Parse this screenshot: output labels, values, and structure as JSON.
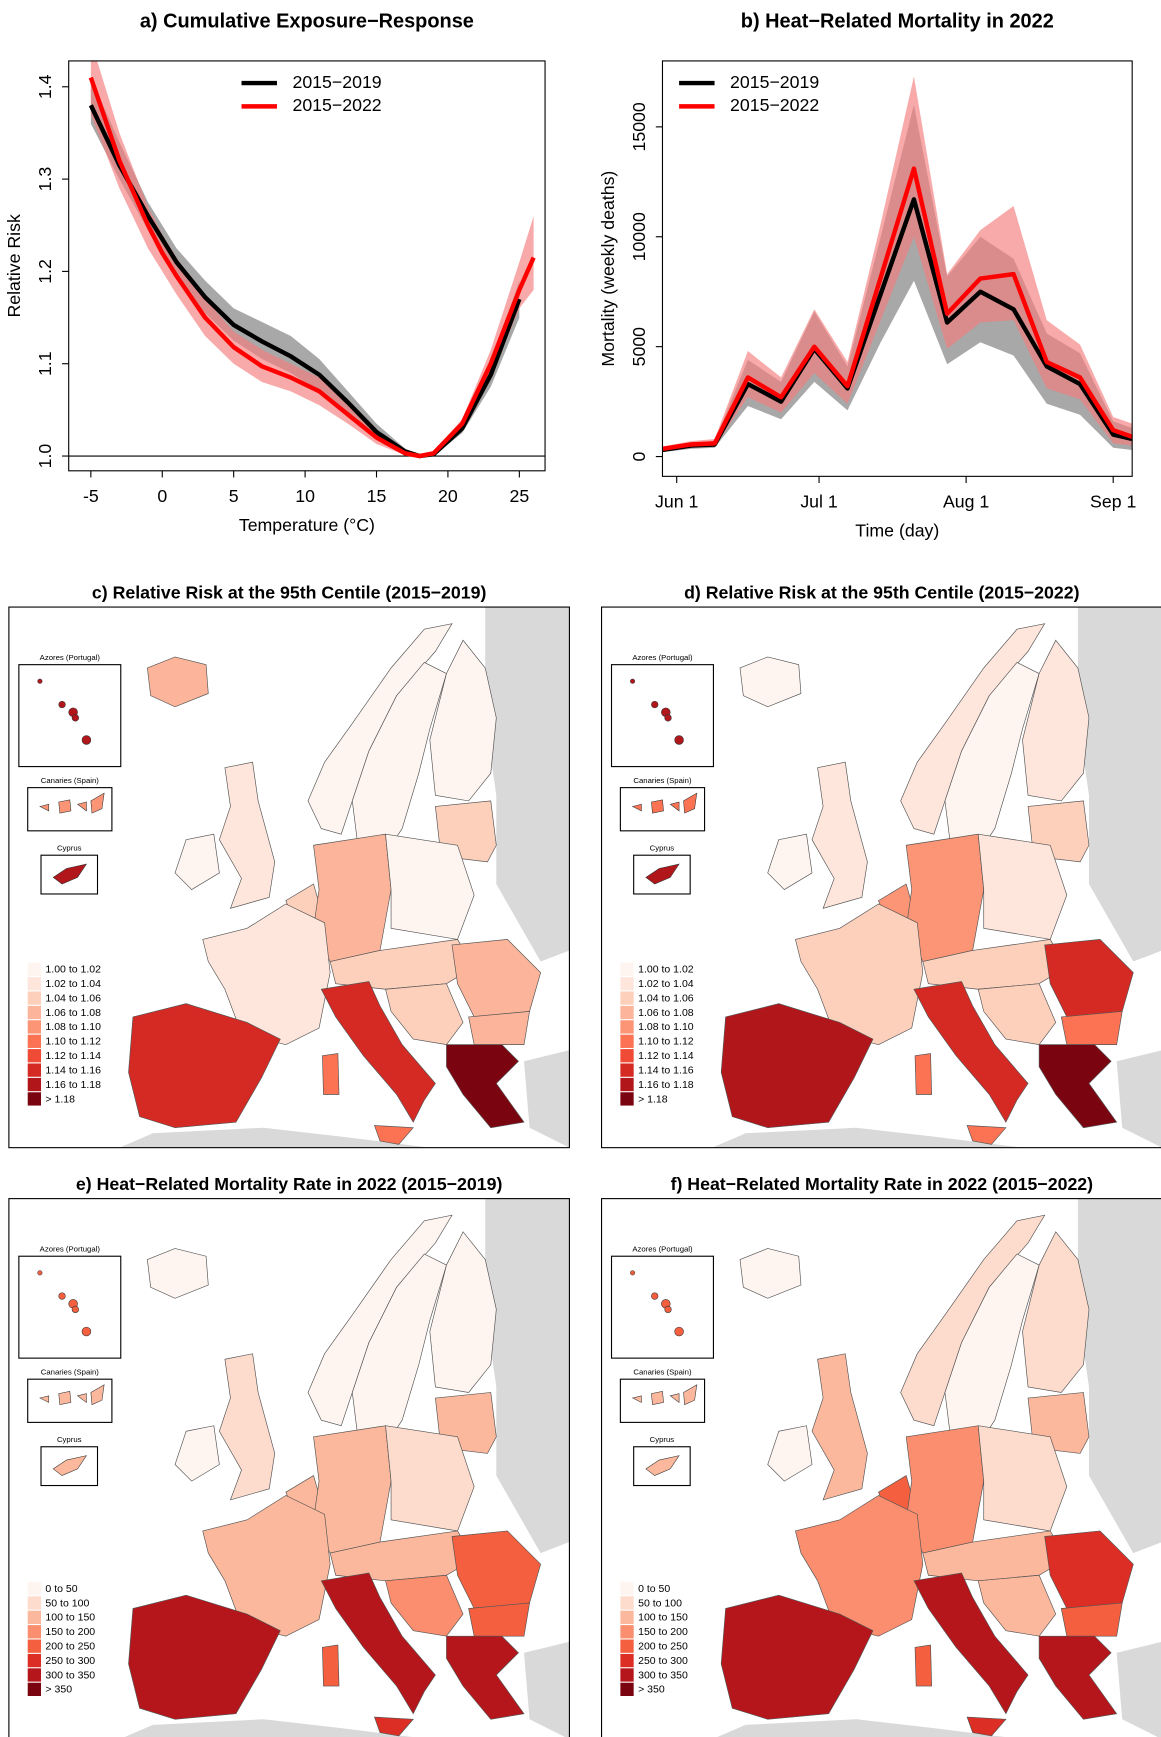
{
  "chart_data": [
    {
      "type": "line",
      "title": "a) Cumulative Exposure−Response",
      "xlabel": "Temperature (°C)",
      "ylabel": "Relative Risk",
      "xlim": [
        -6.55,
        26.8
      ],
      "ylim": [
        0.984,
        1.428
      ],
      "xticks": [
        -5,
        0,
        5,
        10,
        15,
        20,
        25
      ],
      "yticks": [
        {
          "value": 1,
          "label": "1.0"
        },
        1.1,
        1.2,
        1.3,
        1.4
      ],
      "hline": 1,
      "legend": "top",
      "x": [
        -5,
        -3,
        -1,
        0,
        1,
        3,
        5,
        7,
        9,
        11,
        13,
        15,
        17,
        18,
        19,
        21,
        23,
        25,
        26
      ],
      "series": [
        {
          "name": "2015−2019",
          "color": "#000000",
          "band_color": "#7a7a7a",
          "values": [
            1.38,
            1.315,
            1.26,
            1.235,
            1.21,
            1.172,
            1.142,
            1.124,
            1.108,
            1.088,
            1.058,
            1.026,
            1.005,
            1.0,
            1.002,
            1.03,
            1.088,
            1.17,
            null
          ],
          "lower": [
            1.36,
            1.3,
            1.245,
            1.22,
            1.195,
            1.155,
            1.125,
            1.105,
            1.09,
            1.07,
            1.045,
            1.02,
            1.003,
            1.0,
            1.0,
            1.025,
            1.075,
            1.15,
            null
          ],
          "upper": [
            1.41,
            1.34,
            1.275,
            1.25,
            1.225,
            1.19,
            1.16,
            1.145,
            1.13,
            1.105,
            1.07,
            1.035,
            1.008,
            1.0,
            1.004,
            1.035,
            1.1,
            1.19,
            null
          ]
        },
        {
          "name": "2015−2022",
          "color": "#ff0000",
          "band_color": "#f47c7c",
          "values": [
            1.41,
            1.32,
            1.25,
            1.22,
            1.195,
            1.15,
            1.118,
            1.097,
            1.085,
            1.07,
            1.045,
            1.02,
            1.003,
            1.0,
            1.003,
            1.035,
            1.1,
            1.18,
            1.215
          ],
          "lower": [
            1.37,
            1.29,
            1.225,
            1.2,
            1.175,
            1.13,
            1.1,
            1.08,
            1.07,
            1.055,
            1.035,
            1.013,
            1.001,
            1.0,
            1.001,
            1.03,
            1.085,
            1.16,
            1.18
          ],
          "upper": [
            1.45,
            1.35,
            1.27,
            1.24,
            1.215,
            1.17,
            1.135,
            1.115,
            1.1,
            1.085,
            1.055,
            1.027,
            1.005,
            1.0,
            1.005,
            1.04,
            1.115,
            1.21,
            1.26
          ]
        }
      ]
    },
    {
      "type": "line",
      "title": "b) Heat−Related Mortality in 2022",
      "xlabel": "Time (day)",
      "ylabel": "Mortality (weekly deaths)",
      "xlim": [
        -3,
        96
      ],
      "ylim": [
        -900,
        18000
      ],
      "xticks": [
        {
          "value": 0,
          "label": "Jun 1"
        },
        {
          "value": 30,
          "label": "Jul 1"
        },
        {
          "value": 61,
          "label": "Aug 1"
        },
        {
          "value": 92,
          "label": "Sep 1"
        }
      ],
      "yticks": [
        0,
        5000,
        10000,
        15000
      ],
      "legend": "top-left",
      "x": [
        -3,
        3,
        8,
        15,
        22,
        29,
        36,
        43,
        50,
        57,
        64,
        71,
        78,
        85,
        92,
        96
      ],
      "series": [
        {
          "name": "2015−2019",
          "color": "#000000",
          "band_color": "#7a7a7a",
          "values": [
            300,
            500,
            550,
            3300,
            2500,
            4900,
            3100,
            7400,
            11700,
            6100,
            7500,
            6700,
            4100,
            3300,
            1000,
            800
          ],
          "lower": [
            200,
            350,
            400,
            2300,
            1700,
            3400,
            2100,
            5200,
            8000,
            4200,
            5200,
            4600,
            2400,
            1900,
            400,
            300
          ],
          "upper": [
            400,
            650,
            700,
            4400,
            3400,
            6600,
            4100,
            10000,
            16000,
            8200,
            10000,
            9000,
            5600,
            4700,
            1600,
            1300
          ]
        },
        {
          "name": "2015−2022",
          "color": "#ff0000",
          "band_color": "#f47c7c",
          "values": [
            350,
            550,
            600,
            3600,
            2700,
            5000,
            3200,
            8150,
            13100,
            6500,
            8100,
            8300,
            4300,
            3600,
            1200,
            900
          ],
          "lower": [
            250,
            400,
            450,
            2700,
            2000,
            3800,
            2400,
            6200,
            10000,
            4900,
            6100,
            6200,
            3100,
            2600,
            600,
            500
          ],
          "upper": [
            450,
            700,
            800,
            4800,
            3600,
            6700,
            4300,
            10600,
            17300,
            8300,
            10300,
            11400,
            6200,
            5100,
            1800,
            1500
          ]
        }
      ]
    },
    {
      "type": "map",
      "title": "c) Relative Risk at the 95th Centile (2015−2019)",
      "insets": [
        "Azores (Portugal)",
        "Canaries (Spain)",
        "Cyprus"
      ],
      "categories": [
        "1.00 to 1.02",
        "1.02 to 1.04",
        "1.04 to 1.06",
        "1.06 to 1.08",
        "1.08 to 1.10",
        "1.10 to 1.12",
        "1.12 to 1.14",
        "1.14 to 1.16",
        "1.16 to 1.18",
        "> 1.18"
      ],
      "colors": [
        "#fff5f0",
        "#fee6dc",
        "#fdd0bc",
        "#fcb49a",
        "#fc9576",
        "#fb7353",
        "#ef4b36",
        "#d52a24",
        "#b1161b",
        "#7a0510"
      ]
    },
    {
      "type": "map",
      "title": "d) Relative Risk at the 95th Centile (2015−2022)",
      "insets": [
        "Azores (Portugal)",
        "Canaries (Spain)",
        "Cyprus"
      ],
      "categories": [
        "1.00 to 1.02",
        "1.02 to 1.04",
        "1.04 to 1.06",
        "1.06 to 1.08",
        "1.08 to 1.10",
        "1.10 to 1.12",
        "1.12 to 1.14",
        "1.14 to 1.16",
        "1.16 to 1.18",
        "> 1.18"
      ],
      "colors": [
        "#fff5f0",
        "#fee6dc",
        "#fdd0bc",
        "#fcb49a",
        "#fc9576",
        "#fb7353",
        "#ef4b36",
        "#d52a24",
        "#b1161b",
        "#7a0510"
      ]
    },
    {
      "type": "map",
      "title": "e) Heat−Related Mortality Rate in 2022 (2015−2019)",
      "insets": [
        "Azores (Portugal)",
        "Canaries (Spain)",
        "Cyprus"
      ],
      "categories": [
        "0 to 50",
        "50 to 100",
        "100 to 150",
        "150 to 200",
        "200 to 250",
        "250 to 300",
        "300 to 350",
        "> 350"
      ],
      "colors": [
        "#fff5f0",
        "#fddccd",
        "#fcb89c",
        "#fb8e6e",
        "#f4603f",
        "#dc2e25",
        "#b5161b",
        "#7a0510"
      ]
    },
    {
      "type": "map",
      "title": "f) Heat−Related Mortality Rate in 2022 (2015−2022)",
      "insets": [
        "Azores (Portugal)",
        "Canaries (Spain)",
        "Cyprus"
      ],
      "categories": [
        "0 to 50",
        "50 to 100",
        "100 to 150",
        "150 to 200",
        "200 to 250",
        "250 to 300",
        "300 to 350",
        "> 350"
      ],
      "colors": [
        "#fff5f0",
        "#fddccd",
        "#fcb89c",
        "#fb8e6e",
        "#f4603f",
        "#dc2e25",
        "#b5161b",
        "#7a0510"
      ]
    }
  ]
}
